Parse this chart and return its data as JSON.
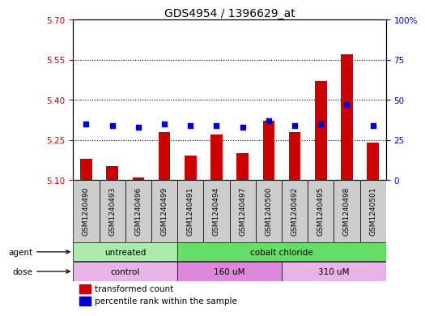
{
  "title": "GDS4954 / 1396629_at",
  "samples": [
    "GSM1240490",
    "GSM1240493",
    "GSM1240496",
    "GSM1240499",
    "GSM1240491",
    "GSM1240494",
    "GSM1240497",
    "GSM1240500",
    "GSM1240492",
    "GSM1240495",
    "GSM1240498",
    "GSM1240501"
  ],
  "transformed_count": [
    5.18,
    5.15,
    5.11,
    5.28,
    5.19,
    5.27,
    5.2,
    5.32,
    5.28,
    5.47,
    5.57,
    5.24
  ],
  "percentile_rank": [
    35,
    34,
    33,
    35,
    34,
    34,
    33,
    37,
    34,
    35,
    47,
    34
  ],
  "ylim_left": [
    5.1,
    5.7
  ],
  "yticks_left": [
    5.1,
    5.25,
    5.4,
    5.55,
    5.7
  ],
  "ylim_right": [
    0,
    100
  ],
  "yticks_right": [
    0,
    25,
    50,
    75,
    100
  ],
  "yticklabels_right": [
    "0",
    "25",
    "50",
    "75",
    "100%"
  ],
  "bar_color": "#cc0000",
  "dot_color": "#0000cc",
  "bar_bottom": 5.1,
  "agent_groups": [
    {
      "label": "untreated",
      "start": 0,
      "end": 4,
      "color": "#aaeaaa"
    },
    {
      "label": "cobalt chloride",
      "start": 4,
      "end": 12,
      "color": "#66dd66"
    }
  ],
  "dose_groups": [
    {
      "label": "control",
      "start": 0,
      "end": 4,
      "color": "#e8b4e8"
    },
    {
      "label": "160 uM",
      "start": 4,
      "end": 8,
      "color": "#dd88dd"
    },
    {
      "label": "310 uM",
      "start": 8,
      "end": 12,
      "color": "#e8b4e8"
    }
  ],
  "sample_box_color": "#cccccc",
  "plot_bg": "#ffffff",
  "left_tick_color": "#cc0000",
  "right_tick_color": "#0000cc",
  "title_fontsize": 10,
  "tick_fontsize": 7.5,
  "sample_fontsize": 6.5,
  "row_fontsize": 7.5,
  "legend_fontsize": 7.5
}
